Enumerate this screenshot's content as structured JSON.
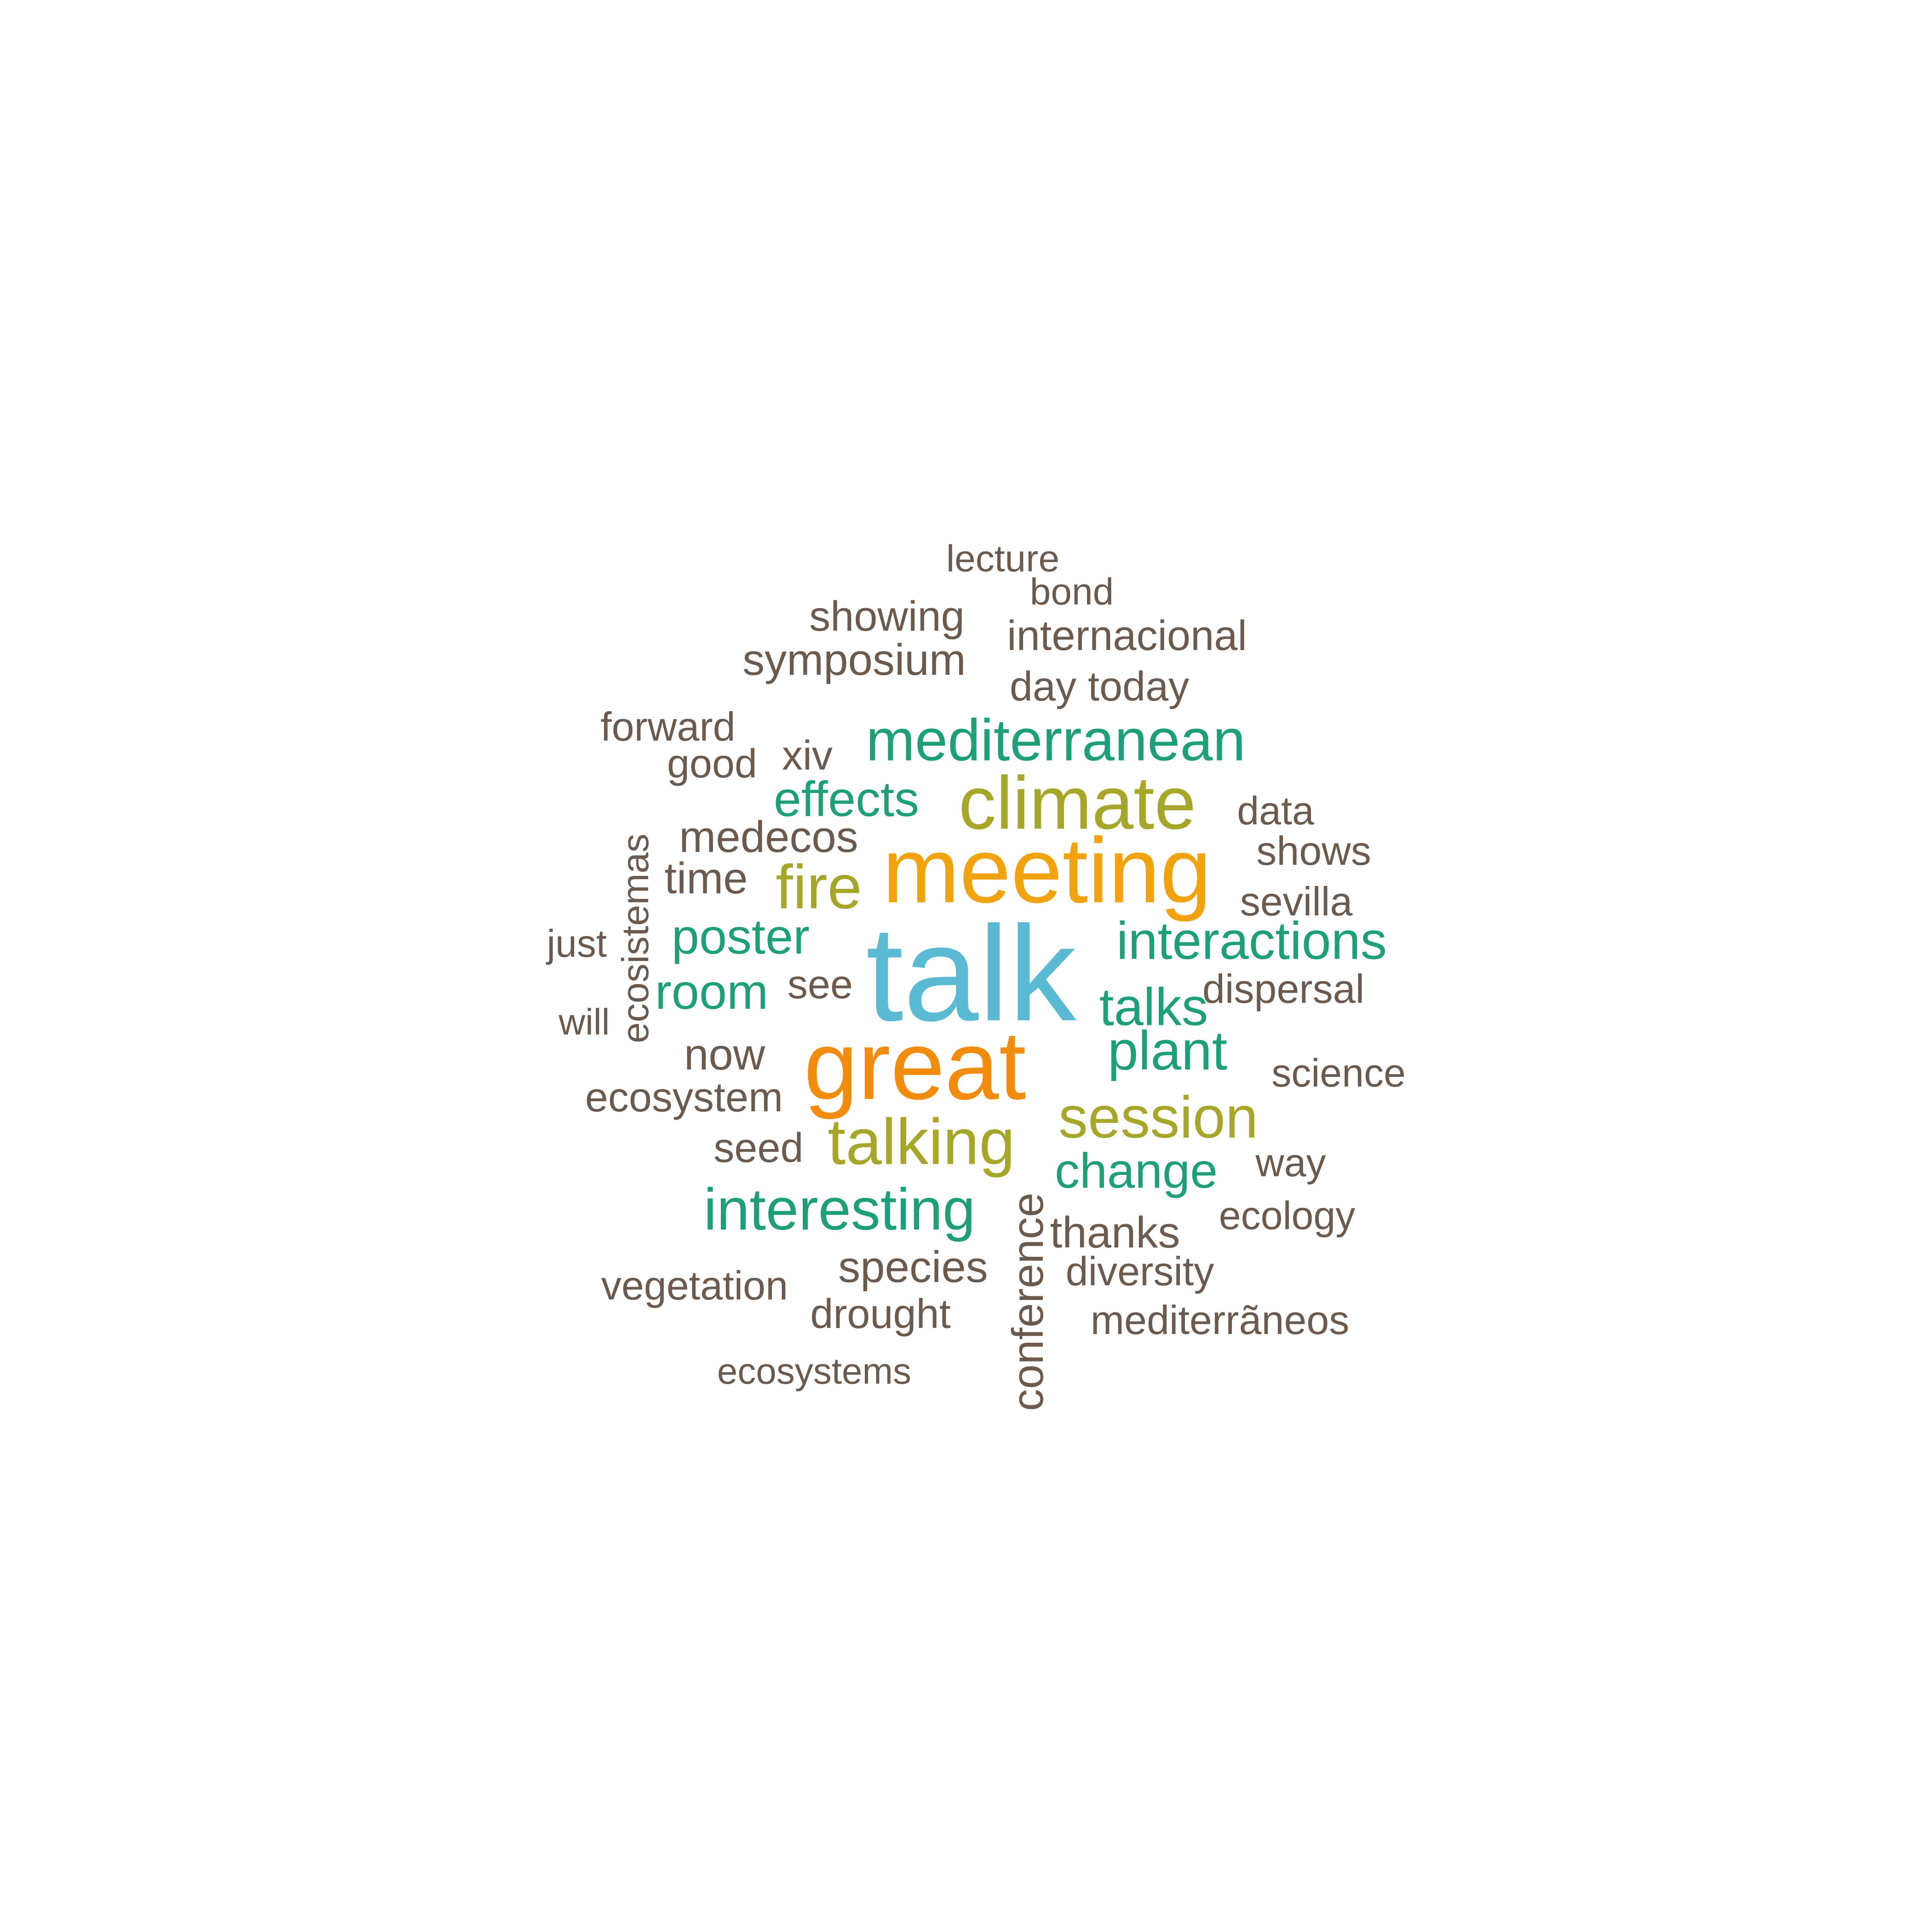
{
  "colors": {
    "brown": "#6b5a4e",
    "green": "#1f9e7a",
    "olive": "#a6a62a",
    "orange": "#f28c0f",
    "gold": "#f0a30e",
    "cyan": "#5bbad3"
  },
  "words": [
    {
      "text": "talk",
      "color": "cyan",
      "weight": 1.0
    },
    {
      "text": "great",
      "color": "orange",
      "weight": 0.73
    },
    {
      "text": "meeting",
      "color": "gold",
      "weight": 0.7
    },
    {
      "text": "climate",
      "color": "olive",
      "weight": 0.56
    },
    {
      "text": "mediterranean",
      "color": "green",
      "weight": 0.48
    },
    {
      "text": "interesting",
      "color": "green",
      "weight": 0.47
    },
    {
      "text": "session",
      "color": "olive",
      "weight": 0.48
    },
    {
      "text": "talking",
      "color": "olive",
      "weight": 0.5
    },
    {
      "text": "fire",
      "color": "olive",
      "weight": 0.48
    },
    {
      "text": "interactions",
      "color": "green",
      "weight": 0.42
    },
    {
      "text": "plant",
      "color": "green",
      "weight": 0.44
    },
    {
      "text": "talks",
      "color": "green",
      "weight": 0.42
    },
    {
      "text": "poster",
      "color": "green",
      "weight": 0.41
    },
    {
      "text": "effects",
      "color": "green",
      "weight": 0.41
    },
    {
      "text": "room",
      "color": "green",
      "weight": 0.41
    },
    {
      "text": "change",
      "color": "green",
      "weight": 0.4
    },
    {
      "text": "symposium",
      "color": "brown",
      "weight": 0.36
    },
    {
      "text": "internacional",
      "color": "brown",
      "weight": 0.35
    },
    {
      "text": "showing",
      "color": "brown",
      "weight": 0.35
    },
    {
      "text": "day today",
      "color": "brown",
      "weight": 0.34
    },
    {
      "text": "medecos",
      "color": "brown",
      "weight": 0.36
    },
    {
      "text": "ecosystem",
      "color": "brown",
      "weight": 0.34
    },
    {
      "text": "vegetation",
      "color": "brown",
      "weight": 0.33
    },
    {
      "text": "species",
      "color": "brown",
      "weight": 0.36
    },
    {
      "text": "drought",
      "color": "brown",
      "weight": 0.34
    },
    {
      "text": "thanks",
      "color": "brown",
      "weight": 0.36
    },
    {
      "text": "diversity",
      "color": "brown",
      "weight": 0.33
    },
    {
      "text": "mediterrãneos",
      "color": "brown",
      "weight": 0.33
    },
    {
      "text": "dispersal",
      "color": "brown",
      "weight": 0.33
    },
    {
      "text": "science",
      "color": "brown",
      "weight": 0.32
    },
    {
      "text": "sevilla",
      "color": "brown",
      "weight": 0.33
    },
    {
      "text": "shows",
      "color": "brown",
      "weight": 0.33
    },
    {
      "text": "data",
      "color": "brown",
      "weight": 0.32
    },
    {
      "text": "ecology",
      "color": "brown",
      "weight": 0.32
    },
    {
      "text": "way",
      "color": "brown",
      "weight": 0.32
    },
    {
      "text": "forward",
      "color": "brown",
      "weight": 0.33
    },
    {
      "text": "good",
      "color": "brown",
      "weight": 0.33
    },
    {
      "text": "xiv",
      "color": "brown",
      "weight": 0.34
    },
    {
      "text": "time",
      "color": "brown",
      "weight": 0.36
    },
    {
      "text": "now",
      "color": "brown",
      "weight": 0.36
    },
    {
      "text": "seed",
      "color": "brown",
      "weight": 0.34
    },
    {
      "text": "see",
      "color": "brown",
      "weight": 0.33
    },
    {
      "text": "just",
      "color": "brown",
      "weight": 0.31
    },
    {
      "text": "will",
      "color": "brown",
      "weight": 0.3
    },
    {
      "text": "lecture",
      "color": "brown",
      "weight": 0.31
    },
    {
      "text": "bond",
      "color": "brown",
      "weight": 0.31
    },
    {
      "text": "ecosystems",
      "color": "brown",
      "weight": 0.3
    },
    {
      "text": "ecosistemas",
      "color": "brown",
      "weight": 0.31
    },
    {
      "text": "conference",
      "color": "brown",
      "weight": 0.36
    }
  ]
}
